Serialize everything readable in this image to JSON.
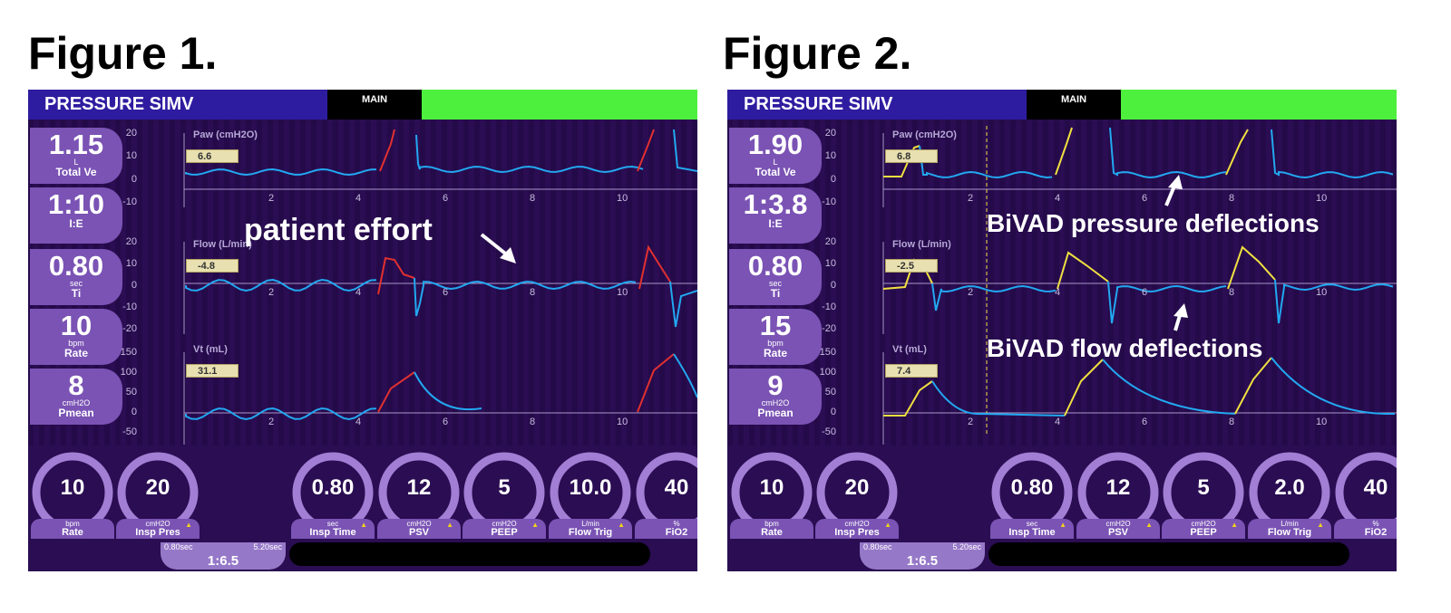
{
  "figures": [
    {
      "title": "Figure 1.",
      "mode": "PRESSURE SIMV",
      "tab": "MAIN",
      "readouts": [
        {
          "value": "1.15",
          "unit": "L",
          "label": "Total Ve"
        },
        {
          "value": "1:10",
          "unit": "",
          "label": "I:E"
        },
        {
          "value": "0.80",
          "unit": "sec",
          "label": "Ti"
        },
        {
          "value": "10",
          "unit": "bpm",
          "label": "Rate"
        },
        {
          "value": "8",
          "unit": "cmH2O",
          "label": "Pmean"
        }
      ],
      "charts": {
        "paw": {
          "label": "Paw (cmH2O)",
          "value": "6.6",
          "ticks": [
            "20",
            "10",
            "0",
            "-10"
          ]
        },
        "flow": {
          "label": "Flow (L/min)",
          "value": "-4.8",
          "ticks": [
            "20",
            "10",
            "0",
            "-10",
            "-20"
          ]
        },
        "vt": {
          "label": "Vt (mL)",
          "value": "31.1",
          "ticks": [
            "150",
            "100",
            "50",
            "0",
            "-50"
          ]
        },
        "x_ticks_paw": [
          "2",
          "4",
          "6",
          "8",
          "10",
          "1"
        ],
        "x_ticks_flow": [
          "2",
          "4",
          "6",
          "8",
          "10",
          "1"
        ],
        "x_ticks_vt": [
          "2",
          "4",
          "6",
          "8",
          "10",
          "1"
        ]
      },
      "dials": [
        {
          "value": "10",
          "unit": "bpm",
          "label": "Rate",
          "warn": false
        },
        {
          "value": "20",
          "unit": "cmH2O",
          "label": "Insp Pres",
          "warn": true
        },
        {
          "value": "0.80",
          "unit": "sec",
          "label": "Insp Time",
          "warn": true
        },
        {
          "value": "12",
          "unit": "cmH2O",
          "label": "PSV",
          "warn": true
        },
        {
          "value": "5",
          "unit": "cmH2O",
          "label": "PEEP",
          "warn": true
        },
        {
          "value": "10.0",
          "unit": "L/min",
          "label": "Flow Trig",
          "warn": true
        },
        {
          "value": "40",
          "unit": "%",
          "label": "FiO2",
          "warn": false
        }
      ],
      "ie": {
        "low": "0.80sec",
        "high": "5.20sec",
        "ratio": "1:6.5"
      },
      "annotations": [
        "patient effort"
      ]
    },
    {
      "title": "Figure 2.",
      "mode": "PRESSURE SIMV",
      "tab": "MAIN",
      "readouts": [
        {
          "value": "1.90",
          "unit": "L",
          "label": "Total Ve"
        },
        {
          "value": "1:3.8",
          "unit": "",
          "label": "I:E"
        },
        {
          "value": "0.80",
          "unit": "sec",
          "label": "Ti"
        },
        {
          "value": "15",
          "unit": "bpm",
          "label": "Rate"
        },
        {
          "value": "9",
          "unit": "cmH2O",
          "label": "Pmean"
        }
      ],
      "charts": {
        "paw": {
          "label": "Paw (cmH2O)",
          "value": "6.8",
          "ticks": [
            "20",
            "10",
            "0",
            "-10"
          ]
        },
        "flow": {
          "label": "Flow (L/min)",
          "value": "-2.5",
          "ticks": [
            "20",
            "10",
            "0",
            "-10",
            "-20"
          ]
        },
        "vt": {
          "label": "Vt (mL)",
          "value": "7.4",
          "ticks": [
            "150",
            "100",
            "50",
            "0",
            "-50"
          ]
        },
        "x_ticks_paw": [
          "2",
          "4",
          "6",
          "8",
          "10",
          "12"
        ],
        "x_ticks_flow": [
          "2",
          "4",
          "6",
          "8",
          "10",
          "12"
        ],
        "x_ticks_vt": [
          "2",
          "4",
          "6",
          "8",
          "10",
          "12"
        ]
      },
      "dials": [
        {
          "value": "10",
          "unit": "bpm",
          "label": "Rate",
          "warn": false
        },
        {
          "value": "20",
          "unit": "cmH2O",
          "label": "Insp Pres",
          "warn": true
        },
        {
          "value": "0.80",
          "unit": "sec",
          "label": "Insp Time",
          "warn": true
        },
        {
          "value": "12",
          "unit": "cmH2O",
          "label": "PSV",
          "warn": true
        },
        {
          "value": "5",
          "unit": "cmH2O",
          "label": "PEEP",
          "warn": true
        },
        {
          "value": "2.0",
          "unit": "L/min",
          "label": "Flow Trig",
          "warn": true
        },
        {
          "value": "40",
          "unit": "%",
          "label": "FiO2",
          "warn": false
        }
      ],
      "ie": {
        "low": "0.80sec",
        "high": "5.20sec",
        "ratio": "1:6.5"
      },
      "annotations": [
        "BiVAD pressure deflections",
        "BiVAD flow deflections"
      ]
    }
  ],
  "colors": {
    "panel_bg": "#2a0d52",
    "mode_bar": "#2e1ca0",
    "green_bar": "#4ef03e",
    "waveform": "#22a8f0",
    "fig1_insp": "#e03030",
    "fig2_insp": "#f0e040",
    "readout_bg": "#7a53b4"
  }
}
